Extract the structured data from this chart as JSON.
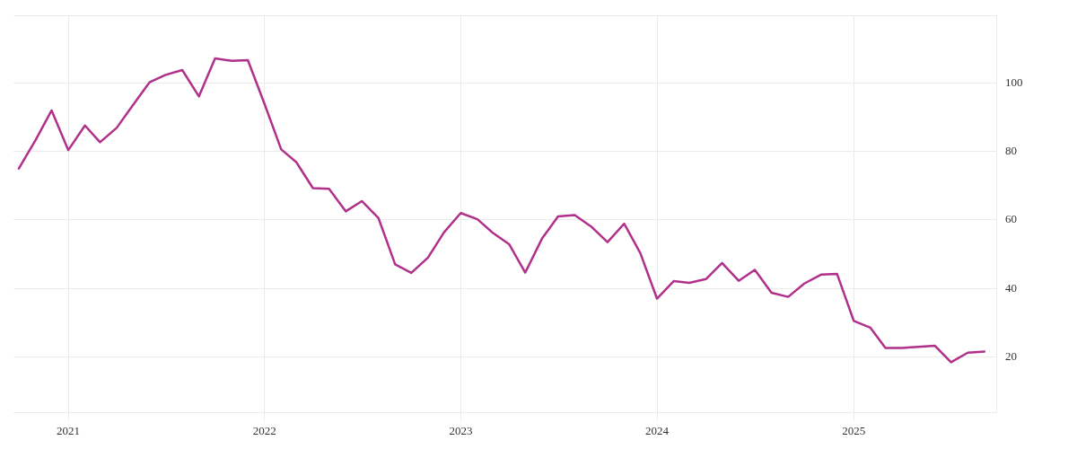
{
  "chart_data": {
    "type": "line",
    "x": [
      "2020-10",
      "2020-11",
      "2020-12",
      "2021-01",
      "2021-02",
      "2021-03",
      "2021-04",
      "2021-05",
      "2021-06",
      "2021-07",
      "2021-08",
      "2021-09",
      "2021-10",
      "2021-11",
      "2021-12",
      "2022-01",
      "2022-02",
      "2022-03",
      "2022-04",
      "2022-05",
      "2022-06",
      "2022-07",
      "2022-08",
      "2022-09",
      "2022-10",
      "2022-11",
      "2022-12",
      "2023-01",
      "2023-02",
      "2023-03",
      "2023-04",
      "2023-05",
      "2023-06",
      "2023-07",
      "2023-08",
      "2023-09",
      "2023-10",
      "2023-11",
      "2023-12",
      "2024-01",
      "2024-02",
      "2024-03",
      "2024-04",
      "2024-05",
      "2024-06",
      "2024-07",
      "2024-08",
      "2024-09",
      "2024-10",
      "2024-11",
      "2024-12",
      "2025-01",
      "2025-02",
      "2025-03",
      "2025-04",
      "2025-05",
      "2025-06",
      "2025-07",
      "2025-08",
      "2025-09"
    ],
    "series": [
      {
        "color": "#b0308a",
        "values": [
          75.0,
          83.3,
          92.0,
          80.4,
          87.6,
          82.7,
          86.9,
          93.5,
          100.2,
          102.4,
          103.8,
          96.1,
          107.2,
          106.5,
          106.7,
          93.9,
          80.6,
          76.9,
          69.3,
          69.1,
          62.5,
          65.5,
          60.5,
          47.0,
          44.5,
          49.0,
          56.4,
          62.0,
          60.2,
          56.3,
          52.9,
          44.6,
          54.5,
          61.0,
          61.4,
          58.0,
          53.5,
          58.9,
          50.3,
          37.0,
          42.1,
          41.6,
          42.7,
          47.4,
          42.2,
          45.4,
          38.7,
          37.5,
          41.4,
          44.0,
          44.2,
          30.5,
          28.5,
          22.6,
          22.6,
          22.9,
          23.2,
          18.4,
          21.2,
          21.5
        ]
      }
    ],
    "xlim": [
      "2020-09-21",
      "2025-09-23"
    ],
    "xticks": [
      {
        "value": "2021",
        "label": "2021"
      },
      {
        "value": "2022",
        "label": "2022"
      },
      {
        "value": "2023",
        "label": "2023"
      },
      {
        "value": "2024",
        "label": "2024"
      },
      {
        "value": "2025",
        "label": "2025"
      }
    ],
    "ylim": [
      3.7,
      119.6
    ],
    "yticks": [
      {
        "value": 3.7,
        "label": null
      },
      20,
      40,
      60,
      80,
      100,
      {
        "value": 119.6,
        "label": null
      }
    ],
    "grid": true,
    "legend": false,
    "marker": "none",
    "line_style": "solid"
  }
}
